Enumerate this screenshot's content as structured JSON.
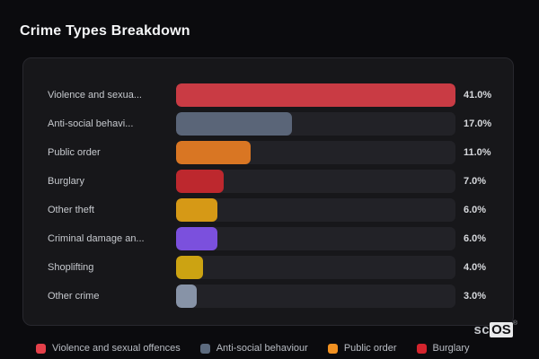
{
  "page": {
    "title": "Crime Types Breakdown"
  },
  "chart_data": {
    "type": "bar",
    "orientation": "horizontal",
    "title": "Crime Types Breakdown",
    "categories": [
      "Violence and sexua...",
      "Anti-social behavi...",
      "Public order",
      "Burglary",
      "Other theft",
      "Criminal damage an...",
      "Shoplifting",
      "Other crime"
    ],
    "values": [
      41.0,
      17.0,
      11.0,
      7.0,
      6.0,
      6.0,
      4.0,
      3.0
    ],
    "value_labels": [
      "41.0%",
      "17.0%",
      "11.0%",
      "7.0%",
      "6.0%",
      "6.0%",
      "4.0%",
      "3.0%"
    ],
    "bar_colors": [
      "#c93b44",
      "#5a6578",
      "#d97623",
      "#bd282e",
      "#d69916",
      "#7b50dd",
      "#cca312",
      "#8793a7"
    ],
    "max_value": 41.0,
    "unit": "%",
    "grid": false,
    "legend_position": "bottom"
  },
  "legend": {
    "items": [
      {
        "label": "Violence and sexual offences",
        "color": "#e5404a"
      },
      {
        "label": "Anti-social behaviour",
        "color": "#5c6a7e"
      },
      {
        "label": "Public order",
        "color": "#f19121"
      },
      {
        "label": "Burglary",
        "color": "#d4242d"
      }
    ]
  },
  "branding": {
    "prefix": "sc",
    "suffix": "OS",
    "registered": "®"
  },
  "colors": {
    "page_bg": "#0b0b0e",
    "card_bg": "#17171a",
    "card_border": "#28282e",
    "track_bg": "#222227",
    "title_text": "#f5f6f8",
    "label_text": "#c7cacf",
    "value_text": "#d6d8dc",
    "legend_text": "#b9bdc4"
  }
}
